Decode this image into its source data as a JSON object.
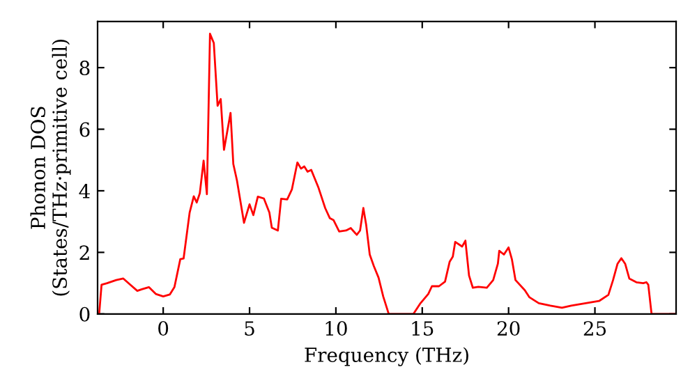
{
  "chart_data": {
    "type": "line",
    "xlabel": "Frequency (THz)",
    "ylabel": "Phonon DOS\n(States/THz·primitive cell)",
    "xlim": [
      -3.8,
      29.7
    ],
    "ylim": [
      0,
      9.5
    ],
    "xticks": [
      0,
      5,
      10,
      15,
      20,
      25
    ],
    "yticks": [
      0,
      2,
      4,
      6,
      8
    ],
    "grid": false,
    "legend": false,
    "line_style": "solid",
    "marker": "none",
    "series": [
      {
        "color": "#ff0000",
        "x": [
          -3.7,
          -3.57,
          -3.25,
          -2.72,
          -2.31,
          -1.91,
          -1.5,
          -1.24,
          -0.83,
          -0.43,
          0.0,
          0.38,
          0.65,
          0.99,
          1.18,
          1.53,
          1.77,
          1.94,
          2.12,
          2.34,
          2.53,
          2.71,
          2.93,
          3.15,
          3.33,
          3.52,
          3.9,
          4.06,
          4.27,
          4.68,
          5.0,
          5.22,
          5.48,
          5.83,
          6.15,
          6.29,
          6.64,
          6.83,
          7.18,
          7.45,
          7.77,
          7.98,
          8.17,
          8.36,
          8.57,
          8.98,
          9.38,
          9.65,
          9.86,
          10.19,
          10.59,
          10.86,
          11.21,
          11.4,
          11.59,
          11.75,
          11.96,
          12.2,
          12.47,
          12.74,
          13.06,
          14.49,
          14.9,
          15.35,
          15.56,
          15.97,
          16.32,
          16.59,
          16.77,
          16.91,
          17.31,
          17.5,
          17.71,
          17.93,
          18.25,
          18.74,
          19.11,
          19.38,
          19.46,
          19.73,
          20.0,
          20.19,
          20.4,
          20.94,
          21.21,
          21.75,
          22.42,
          23.09,
          23.63,
          25.24,
          25.78,
          26.05,
          26.31,
          26.53,
          26.75,
          26.99,
          27.4,
          27.8,
          27.98,
          28.09,
          28.28,
          29.7
        ],
        "values": [
          0.05,
          0.95,
          1.0,
          1.1,
          1.15,
          0.95,
          0.75,
          0.8,
          0.87,
          0.65,
          0.57,
          0.63,
          0.87,
          1.78,
          1.8,
          3.29,
          3.82,
          3.62,
          3.92,
          4.98,
          3.89,
          9.1,
          8.8,
          6.76,
          6.98,
          5.33,
          6.53,
          4.87,
          4.34,
          2.96,
          3.56,
          3.21,
          3.81,
          3.75,
          3.29,
          2.8,
          2.71,
          3.74,
          3.72,
          4.04,
          4.92,
          4.72,
          4.79,
          4.62,
          4.68,
          4.12,
          3.44,
          3.11,
          3.05,
          2.68,
          2.71,
          2.79,
          2.57,
          2.71,
          3.44,
          2.91,
          1.93,
          1.55,
          1.18,
          0.57,
          0.0,
          0.0,
          0.35,
          0.65,
          0.9,
          0.9,
          1.05,
          1.7,
          1.86,
          2.34,
          2.19,
          2.38,
          1.25,
          0.85,
          0.88,
          0.85,
          1.1,
          1.63,
          2.05,
          1.93,
          2.16,
          1.78,
          1.1,
          0.77,
          0.54,
          0.35,
          0.27,
          0.2,
          0.27,
          0.42,
          0.62,
          1.1,
          1.63,
          1.81,
          1.63,
          1.15,
          1.03,
          1.0,
          1.03,
          0.95,
          0.0,
          0.0
        ]
      }
    ]
  }
}
